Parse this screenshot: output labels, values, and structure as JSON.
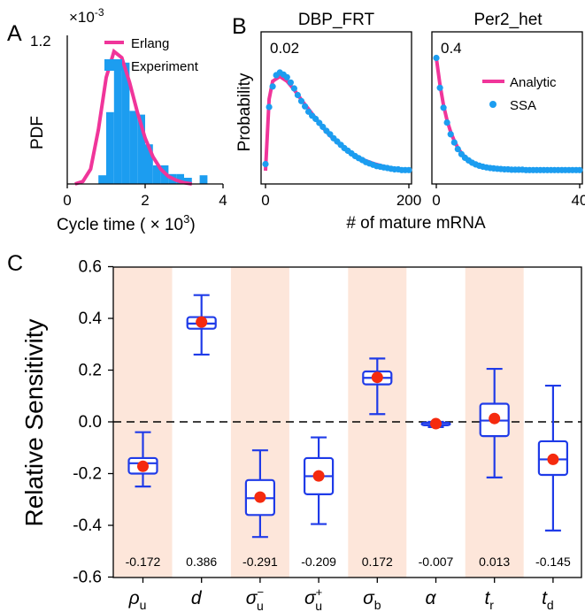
{
  "panels": {
    "A": {
      "letter": "A",
      "y_multiplier": "×10",
      "y_multiplier_exp": "-3",
      "y_top_tick": "1.2",
      "ylabel": "PDF",
      "xlabel": "Cycle time ( × 10",
      "xlabel_exp": "3",
      "xlabel_end": ")",
      "x_ticks": [
        "0",
        "2",
        "4"
      ],
      "legend": [
        "Erlang",
        "Experiment"
      ]
    },
    "B": {
      "letter": "B",
      "ylabel": "Probability",
      "xlabel": "# of mature mRNA",
      "left": {
        "title": "DBP_FRT",
        "tag": "0.02",
        "x_ticks": [
          "0",
          "200"
        ]
      },
      "right": {
        "title": "Per2_het",
        "tag": "0.4",
        "x_ticks": [
          "0",
          "40"
        ]
      },
      "legend": [
        "Analytic",
        "SSA"
      ]
    },
    "C": {
      "letter": "C",
      "ylabel": "Relative Sensitivity",
      "y_ticks": [
        "0.6",
        "0.4",
        "0.2",
        "0.0",
        "-0.2",
        "-0.4",
        "-0.6"
      ],
      "params": [
        "ρ",
        "d",
        "σ",
        "σ",
        "σ",
        "α",
        "t",
        "t"
      ],
      "param_subs": [
        "u",
        "",
        "u",
        "u",
        "b",
        "",
        "r",
        "d"
      ],
      "param_sups": [
        "",
        "",
        "−",
        "+",
        "",
        "",
        "",
        ""
      ],
      "value_labels": [
        "-0.172",
        "0.386",
        "-0.291",
        "-0.209",
        "0.172",
        "-0.007",
        "0.013",
        "-0.145"
      ]
    }
  },
  "colors": {
    "pink": "#f0359a",
    "blue": "#1c9df0",
    "box_blue": "#1f3be8",
    "mean_red": "#f52a0e",
    "shade": "#fde6da"
  },
  "chart_data": [
    {
      "type": "bar",
      "title": "",
      "xlabel": "Cycle time (×10^3)",
      "ylabel": "PDF",
      "xlim": [
        0,
        4
      ],
      "ylim": [
        0,
        1.2
      ],
      "y_scale_factor": "1e-3",
      "series": [
        {
          "name": "Experiment",
          "type": "bar",
          "bin_width": 0.2,
          "x": [
            0.8,
            1.0,
            1.2,
            1.4,
            1.6,
            1.8,
            2.0,
            2.2,
            2.4,
            2.6,
            2.8,
            3.0,
            3.2,
            3.4
          ],
          "values": [
            0.07,
            0.58,
            0.98,
            0.98,
            0.59,
            0.56,
            0.32,
            0.15,
            0.15,
            0.08,
            0.08,
            0.05,
            0.0,
            0.07
          ]
        },
        {
          "name": "Erlang",
          "type": "line",
          "x": [
            0.2,
            0.4,
            0.6,
            0.8,
            1.0,
            1.2,
            1.4,
            1.6,
            1.8,
            2.0,
            2.2,
            2.4,
            2.6,
            2.8,
            3.0,
            3.2
          ],
          "values": [
            0.0,
            0.02,
            0.12,
            0.44,
            0.86,
            1.07,
            1.02,
            0.82,
            0.58,
            0.37,
            0.22,
            0.12,
            0.06,
            0.03,
            0.01,
            0.0
          ]
        }
      ]
    },
    {
      "type": "line",
      "title": "DBP_FRT",
      "xlabel": "# of mature mRNA",
      "ylabel": "Probability",
      "xlim": [
        0,
        200
      ],
      "ylim": [
        0,
        0.02
      ],
      "series": [
        {
          "name": "Analytic",
          "x": [
            0,
            5,
            10,
            20,
            30,
            40,
            50,
            60,
            70,
            80,
            90,
            100,
            110,
            120,
            130,
            140,
            150,
            160,
            170,
            180,
            190,
            200
          ],
          "values": [
            0.0,
            0.0108,
            0.0135,
            0.0142,
            0.0135,
            0.0122,
            0.0107,
            0.0093,
            0.0079,
            0.0065,
            0.0053,
            0.0043,
            0.0034,
            0.0026,
            0.002,
            0.0015,
            0.0011,
            0.0008,
            0.0005,
            0.0003,
            0.0002,
            0.0001
          ]
        },
        {
          "name": "SSA",
          "x": [
            0,
            5,
            10,
            15,
            20,
            25,
            30,
            35,
            40,
            45,
            50,
            55,
            60,
            65,
            70,
            75,
            80,
            85,
            90,
            95,
            100,
            105,
            110,
            115,
            120,
            125,
            130,
            135,
            140,
            145,
            150,
            155,
            160,
            165,
            170,
            175,
            180,
            185,
            190,
            195,
            200
          ],
          "values": [
            0.001,
            0.0096,
            0.0127,
            0.0144,
            0.0148,
            0.0145,
            0.0141,
            0.0133,
            0.0124,
            0.0114,
            0.0105,
            0.0097,
            0.0089,
            0.0083,
            0.0078,
            0.0072,
            0.0066,
            0.006,
            0.0055,
            0.0049,
            0.0044,
            0.0039,
            0.0034,
            0.003,
            0.0026,
            0.0022,
            0.0019,
            0.0016,
            0.0013,
            0.0011,
            0.0009,
            0.0007,
            0.0006,
            0.0005,
            0.0004,
            0.0003,
            0.0002,
            0.0002,
            0.0001,
            0.0001,
            0.0001
          ]
        }
      ]
    },
    {
      "type": "line",
      "title": "Per2_het",
      "xlabel": "# of mature mRNA",
      "ylabel": "Probability",
      "xlim": [
        0,
        40
      ],
      "ylim": [
        0,
        0.4
      ],
      "legend": "upper-right",
      "series": [
        {
          "name": "Analytic",
          "x": [
            0,
            1,
            2,
            3,
            4,
            5,
            6,
            7,
            8,
            10,
            12,
            14,
            16,
            18,
            20,
            25,
            30,
            35,
            40
          ],
          "values": [
            0.34,
            0.26,
            0.198,
            0.152,
            0.117,
            0.09,
            0.069,
            0.053,
            0.041,
            0.025,
            0.015,
            0.01,
            0.007,
            0.005,
            0.004,
            0.003,
            0.002,
            0.002,
            0.002
          ]
        },
        {
          "name": "SSA",
          "x": [
            0,
            1,
            2,
            3,
            4,
            5,
            6,
            7,
            8,
            9,
            10,
            11,
            12,
            13,
            14,
            15,
            16,
            17,
            18,
            19,
            20,
            21,
            22,
            23,
            24,
            25,
            26,
            27,
            28,
            29,
            30,
            31,
            32,
            33,
            34,
            35,
            36,
            37,
            38,
            39,
            40
          ],
          "values": [
            0.34,
            0.25,
            0.19,
            0.145,
            0.11,
            0.085,
            0.065,
            0.05,
            0.039,
            0.031,
            0.024,
            0.019,
            0.015,
            0.012,
            0.01,
            0.008,
            0.007,
            0.006,
            0.005,
            0.004,
            0.004,
            0.003,
            0.003,
            0.003,
            0.003,
            0.002,
            0.002,
            0.002,
            0.002,
            0.002,
            0.002,
            0.002,
            0.002,
            0.002,
            0.002,
            0.002,
            0.002,
            0.002,
            0.002,
            0.002,
            0.002
          ]
        }
      ]
    },
    {
      "type": "box",
      "title": "",
      "xlabel": "",
      "ylabel": "Relative Sensitivity",
      "ylim": [
        -0.6,
        0.6
      ],
      "reference_line": 0.0,
      "categories": [
        "ρu",
        "d",
        "σu−",
        "σu+",
        "σb",
        "α",
        "tr",
        "td"
      ],
      "shaded_categories": [
        0,
        2,
        4,
        6
      ],
      "boxes": [
        {
          "whislo": -0.25,
          "q1": -0.2,
          "med": -0.16,
          "q3": -0.14,
          "whishi": -0.04,
          "mean": -0.172
        },
        {
          "whislo": 0.26,
          "q1": 0.36,
          "med": 0.38,
          "q3": 0.405,
          "whishi": 0.49,
          "mean": 0.386
        },
        {
          "whislo": -0.445,
          "q1": -0.36,
          "med": -0.295,
          "q3": -0.225,
          "whishi": -0.11,
          "mean": -0.291
        },
        {
          "whislo": -0.395,
          "q1": -0.28,
          "med": -0.21,
          "q3": -0.14,
          "whishi": -0.06,
          "mean": -0.209
        },
        {
          "whislo": 0.03,
          "q1": 0.145,
          "med": 0.17,
          "q3": 0.195,
          "whishi": 0.245,
          "mean": 0.172
        },
        {
          "whislo": -0.02,
          "q1": -0.01,
          "med": -0.005,
          "q3": -0.003,
          "whishi": 0.0,
          "mean": -0.007
        },
        {
          "whislo": -0.215,
          "q1": -0.055,
          "med": 0.005,
          "q3": 0.07,
          "whishi": 0.205,
          "mean": 0.013
        },
        {
          "whislo": -0.42,
          "q1": -0.205,
          "med": -0.145,
          "q3": -0.075,
          "whishi": 0.14,
          "mean": -0.145
        }
      ]
    }
  ]
}
